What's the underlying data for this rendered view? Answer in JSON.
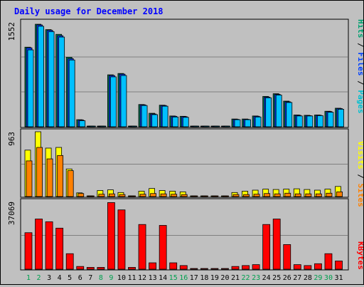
{
  "chart_data": {
    "type": "bar",
    "title": "Daily usage for December 2018",
    "days": [
      1,
      2,
      3,
      4,
      5,
      6,
      7,
      8,
      9,
      10,
      11,
      12,
      13,
      14,
      15,
      16,
      17,
      18,
      19,
      20,
      21,
      22,
      23,
      24,
      25,
      26,
      27,
      28,
      29,
      30,
      31
    ],
    "weekend_days": [
      1,
      2,
      8,
      9,
      15,
      16,
      22,
      23,
      29,
      30
    ],
    "panels": {
      "hits": {
        "max_label": "1552",
        "ylim": [
          0,
          1552
        ],
        "legend": [
          {
            "text": "Pages",
            "color": "#00c0d0"
          },
          {
            "text": "Files",
            "color": "#0040ff"
          },
          {
            "text": "Hits",
            "color": "#00a070"
          }
        ],
        "series": [
          {
            "name": "Hits",
            "color": "#00805b",
            "values": [
              1180,
              1520,
              1440,
              1370,
              1030,
              105,
              10,
              10,
              770,
              790,
              10,
              330,
              200,
              320,
              160,
              155,
              0,
              0,
              0,
              0,
              115,
              115,
              160,
              450,
              490,
              380,
              175,
              170,
              175,
              230,
              275
            ]
          },
          {
            "name": "Files",
            "color": "#0040ff",
            "values": [
              1170,
              1510,
              1430,
              1350,
              1010,
              100,
              8,
              8,
              760,
              780,
              8,
              325,
              190,
              315,
              155,
              150,
              0,
              0,
              0,
              0,
              110,
              110,
              155,
              440,
              480,
              370,
              170,
              165,
              170,
              225,
              270
            ]
          },
          {
            "name": "Pages",
            "color": "#00c0ff",
            "values": [
              1140,
              1490,
              1410,
              1330,
              990,
              90,
              5,
              5,
              740,
              760,
              5,
              315,
              180,
              305,
              145,
              140,
              0,
              0,
              0,
              0,
              105,
              105,
              145,
              430,
              470,
              360,
              160,
              160,
              165,
              215,
              260
            ]
          }
        ]
      },
      "visits": {
        "max_label": "963",
        "ylim": [
          0,
          963
        ],
        "legend": [
          {
            "text": "Sites",
            "color": "#ff8000"
          },
          {
            "text": "Visits",
            "color": "#ffff00"
          }
        ],
        "series": [
          {
            "name": "Visits",
            "color": "#ffff00",
            "values": [
              690,
              963,
              720,
              730,
              410,
              55,
              10,
              90,
              100,
              60,
              10,
              80,
              120,
              90,
              80,
              70,
              0,
              0,
              0,
              0,
              60,
              80,
              95,
              110,
              105,
              110,
              115,
              105,
              95,
              110,
              150
            ]
          },
          {
            "name": "Sites",
            "color": "#ff8000",
            "values": [
              530,
              730,
              560,
              610,
              385,
              45,
              8,
              35,
              40,
              30,
              8,
              35,
              45,
              40,
              35,
              30,
              0,
              0,
              0,
              0,
              30,
              30,
              35,
              45,
              40,
              50,
              40,
              40,
              40,
              50,
              70
            ]
          }
        ]
      },
      "kbytes": {
        "max_label": "37069",
        "ylim": [
          0,
          37069
        ],
        "legend": [
          {
            "text": "KBytes",
            "color": "#ff0000"
          }
        ],
        "series": [
          {
            "name": "KBytes",
            "color": "#ff0000",
            "values": [
              20000,
              27500,
              26000,
              22500,
              8500,
              1500,
              1000,
              1000,
              36500,
              32500,
              1000,
              24500,
              3500,
              24000,
              3500,
              2000,
              0,
              0,
              0,
              0,
              1500,
              2000,
              2500,
              24500,
              27500,
              13500,
              2500,
              2000,
              3000,
              8500,
              4500
            ]
          }
        ]
      }
    }
  }
}
